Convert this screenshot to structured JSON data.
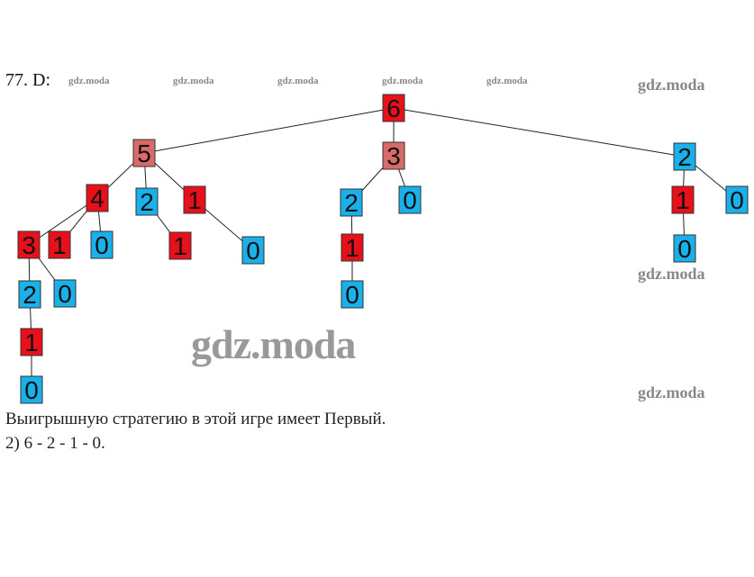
{
  "problem_label": "77. D:",
  "watermark": "gdz.moda",
  "colors": {
    "red": "#e8101a",
    "blue": "#1ab0ea",
    "faded_red": "#d86a6a"
  },
  "tree": {
    "nodes": [
      {
        "id": "n6",
        "value": "6",
        "color": "red"
      },
      {
        "id": "n5",
        "value": "5",
        "color": "faded_red"
      },
      {
        "id": "n3m",
        "value": "3",
        "color": "faded_red"
      },
      {
        "id": "n2r",
        "value": "2",
        "color": "blue"
      },
      {
        "id": "n4",
        "value": "4",
        "color": "red"
      },
      {
        "id": "n2a",
        "value": "2",
        "color": "blue"
      },
      {
        "id": "n1a",
        "value": "1",
        "color": "red"
      },
      {
        "id": "n3",
        "value": "3",
        "color": "red"
      },
      {
        "id": "n1b",
        "value": "1",
        "color": "red"
      },
      {
        "id": "n0a",
        "value": "0",
        "color": "blue"
      },
      {
        "id": "n1c",
        "value": "1",
        "color": "red"
      },
      {
        "id": "n0b",
        "value": "0",
        "color": "blue"
      },
      {
        "id": "n2b",
        "value": "2",
        "color": "blue"
      },
      {
        "id": "n0c",
        "value": "0",
        "color": "blue"
      },
      {
        "id": "n1d",
        "value": "1",
        "color": "red"
      },
      {
        "id": "n0d",
        "value": "0",
        "color": "blue"
      },
      {
        "id": "n2m",
        "value": "2",
        "color": "blue"
      },
      {
        "id": "n0m",
        "value": "0",
        "color": "blue"
      },
      {
        "id": "n1m",
        "value": "1",
        "color": "red"
      },
      {
        "id": "n0m2",
        "value": "0",
        "color": "blue"
      },
      {
        "id": "n1r",
        "value": "1",
        "color": "red"
      },
      {
        "id": "n0r",
        "value": "0",
        "color": "blue"
      },
      {
        "id": "n0r2",
        "value": "0",
        "color": "blue"
      }
    ],
    "edges": [
      [
        "n6",
        "n5"
      ],
      [
        "n6",
        "n3m"
      ],
      [
        "n6",
        "n2r"
      ],
      [
        "n5",
        "n4"
      ],
      [
        "n5",
        "n2a"
      ],
      [
        "n5",
        "n1a"
      ],
      [
        "n4",
        "n3"
      ],
      [
        "n4",
        "n1b"
      ],
      [
        "n4",
        "n0a"
      ],
      [
        "n2a",
        "n1c"
      ],
      [
        "n1a",
        "n0b"
      ],
      [
        "n3",
        "n2b"
      ],
      [
        "n3",
        "n0c"
      ],
      [
        "n2b",
        "n1d"
      ],
      [
        "n1d",
        "n0d"
      ],
      [
        "n3m",
        "n2m"
      ],
      [
        "n3m",
        "n0m"
      ],
      [
        "n2m",
        "n1m"
      ],
      [
        "n1m",
        "n0m2"
      ],
      [
        "n2r",
        "n1r"
      ],
      [
        "n2r",
        "n0r"
      ],
      [
        "n1r",
        "n0r2"
      ]
    ]
  },
  "answer": {
    "line1": "Выигрышную стратегию в этой игре имеет Первый.",
    "line2": "2) 6 - 2 - 1 - 0."
  }
}
